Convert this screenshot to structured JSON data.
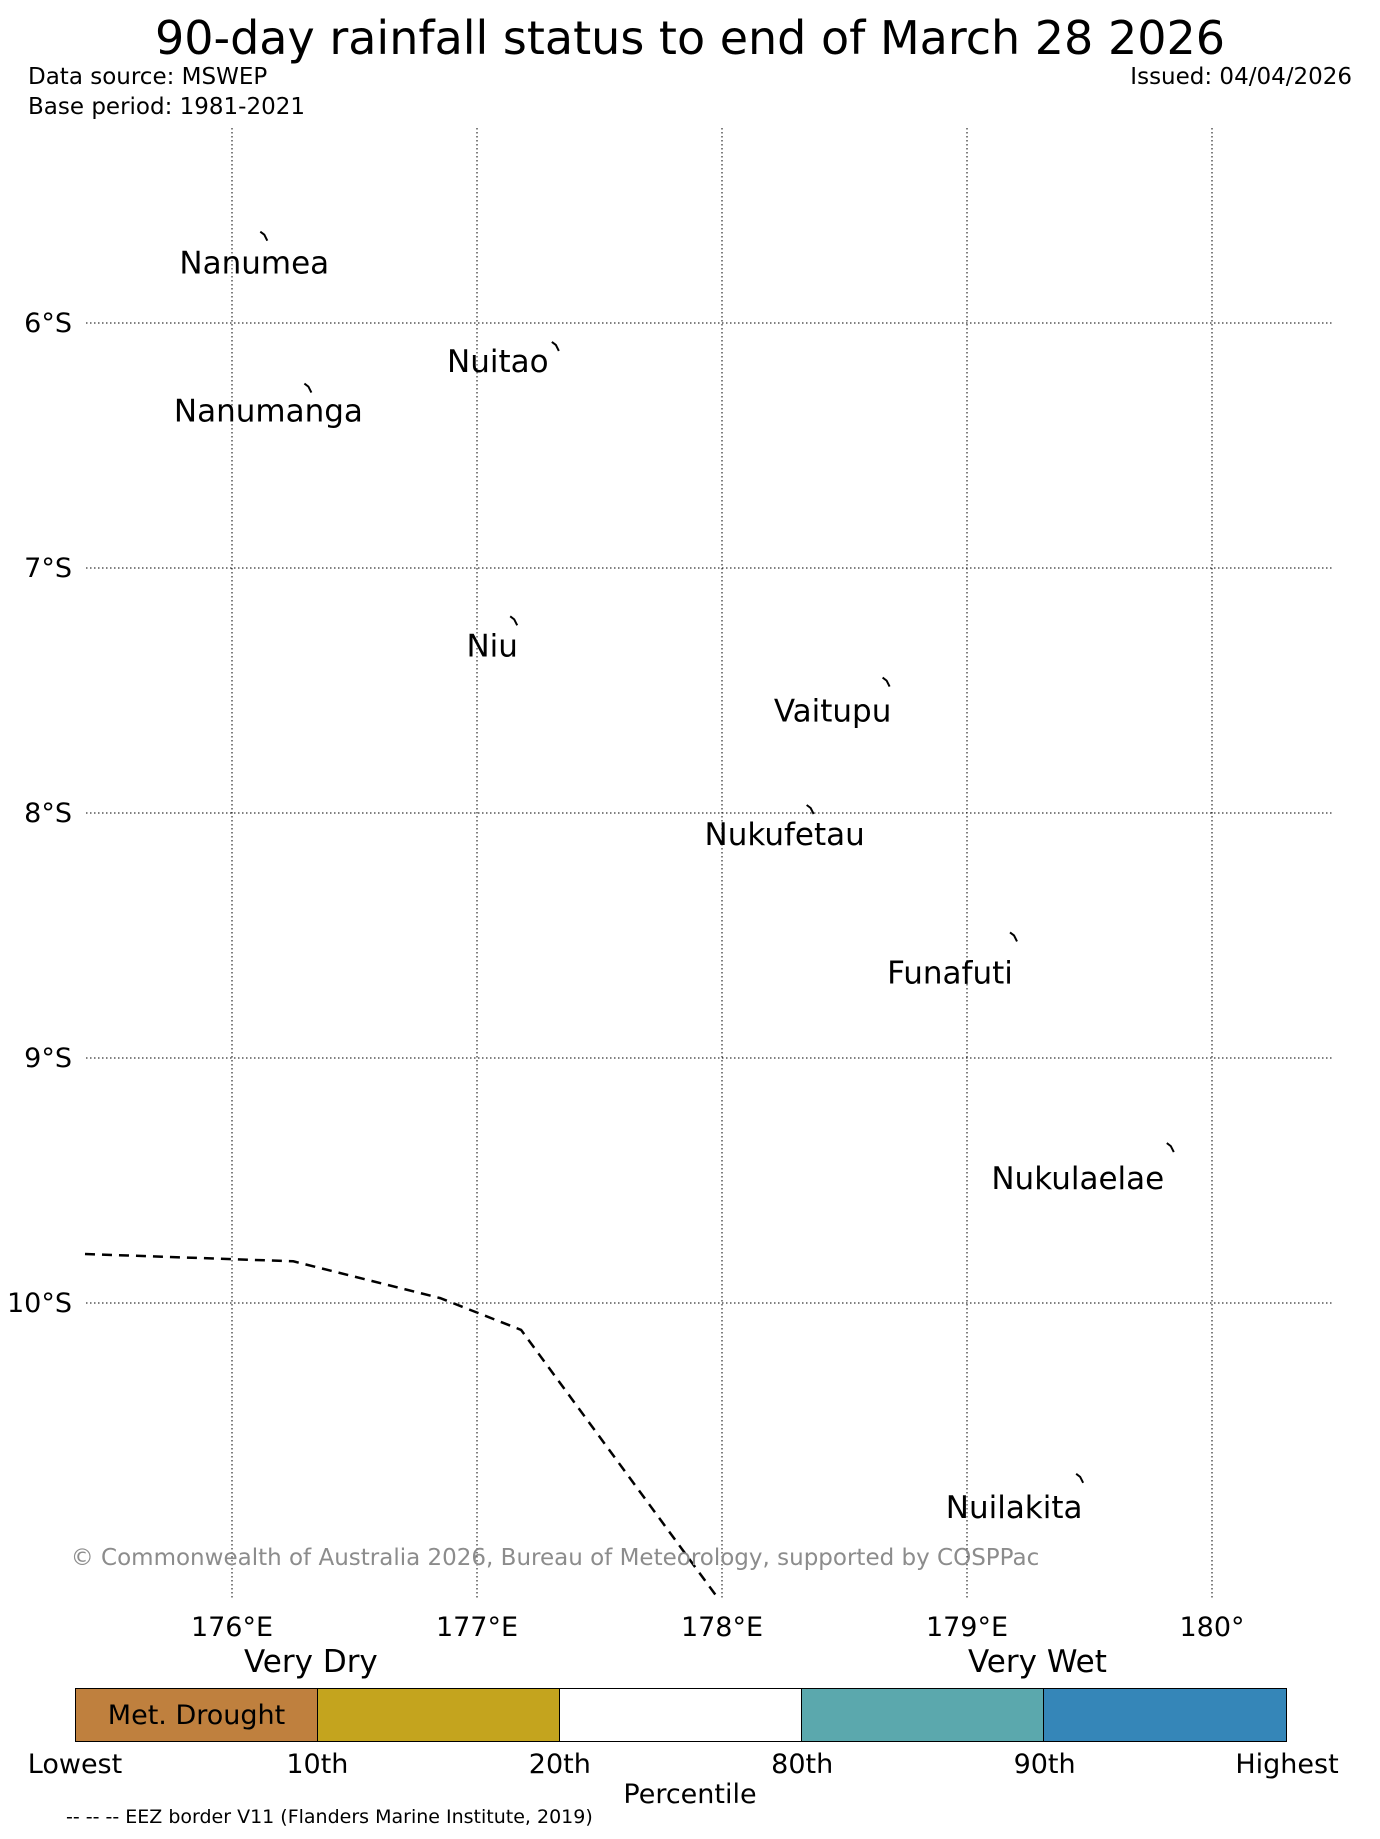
{
  "header": {
    "title": "90-day rainfall status to end of March 28 2026",
    "data_source": "Data source: MSWEP",
    "base_period": "Base period: 1981-2021",
    "issued": "Issued: 04/04/2026"
  },
  "map": {
    "lat_labels": [
      "6°S",
      "7°S",
      "8°S",
      "9°S",
      "10°S"
    ],
    "lon_labels": [
      "176°E",
      "177°E",
      "178°E",
      "179°E",
      "180°"
    ],
    "lat_range_deg_south": [
      5.2,
      11.2
    ],
    "lon_range_deg_east": [
      175.4,
      180.5
    ],
    "islands": [
      {
        "name": "Nanumea",
        "lon": 176.14,
        "lat": -5.66
      },
      {
        "name": "Nuitao",
        "lon": 177.33,
        "lat": -6.11
      },
      {
        "name": "Nanumanga",
        "lon": 176.32,
        "lat": -6.28
      },
      {
        "name": "Niu",
        "lon": 177.16,
        "lat": -7.23
      },
      {
        "name": "Vaitupu",
        "lon": 178.68,
        "lat": -7.48
      },
      {
        "name": "Nukufetau",
        "lon": 178.37,
        "lat": -8.0
      },
      {
        "name": "Funafuti",
        "lon": 179.2,
        "lat": -8.52
      },
      {
        "name": "Nukulaelae",
        "lon": 179.84,
        "lat": -9.38
      },
      {
        "name": "Nuilakita",
        "lon": 179.47,
        "lat": -10.73
      }
    ],
    "eez_border": [
      {
        "lon": 175.4,
        "lat": -9.8
      },
      {
        "lon": 176.25,
        "lat": -9.83
      },
      {
        "lon": 176.85,
        "lat": -9.98
      },
      {
        "lon": 177.18,
        "lat": -10.11
      },
      {
        "lon": 177.65,
        "lat": -10.75
      },
      {
        "lon": 177.98,
        "lat": -11.2
      }
    ],
    "copyright": "© Commonwealth of Australia 2026, Bureau of Meteorology, supported by COSPPac"
  },
  "legend": {
    "very_dry": "Very Dry",
    "very_wet": "Very Wet",
    "segments": [
      {
        "label": "Met. Drought",
        "color": "#bf803e"
      },
      {
        "label": "",
        "color": "#c4a41e"
      },
      {
        "label": "",
        "color": "#ffffff"
      },
      {
        "label": "",
        "color": "#5ba8ad"
      },
      {
        "label": "",
        "color": "#3586b8"
      }
    ],
    "ticks": [
      "Lowest",
      "10th",
      "20th",
      "80th",
      "90th",
      "Highest"
    ],
    "axis_label": "Percentile",
    "eez_note": "-- -- -- EEZ border V11 (Flanders Marine Institute, 2019)"
  }
}
